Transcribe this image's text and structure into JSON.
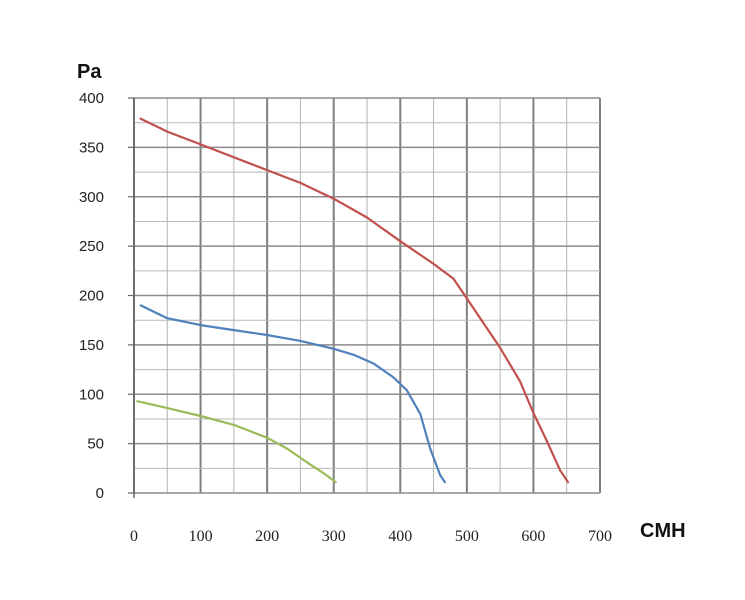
{
  "chart_data": {
    "type": "line",
    "xlabel": "CMH",
    "ylabel": "Pa",
    "xlim": [
      0,
      700
    ],
    "ylim": [
      0,
      400
    ],
    "x_ticks": [
      "0",
      "100",
      "200",
      "300",
      "400",
      "500",
      "600",
      "700"
    ],
    "y_ticks": [
      "0",
      "50",
      "100",
      "150",
      "200",
      "250",
      "300",
      "350",
      "400"
    ],
    "grid": true,
    "series": [
      {
        "color": "#c0504d",
        "points": [
          [
            10,
            379
          ],
          [
            50,
            366
          ],
          [
            100,
            353
          ],
          [
            150,
            340
          ],
          [
            200,
            327
          ],
          [
            250,
            314
          ],
          [
            300,
            298
          ],
          [
            350,
            279
          ],
          [
            400,
            255
          ],
          [
            450,
            232
          ],
          [
            480,
            217
          ],
          [
            500,
            197
          ],
          [
            520,
            177
          ],
          [
            550,
            147
          ],
          [
            580,
            113
          ],
          [
            600,
            81
          ],
          [
            620,
            53
          ],
          [
            640,
            23
          ],
          [
            652,
            11
          ]
        ]
      },
      {
        "color": "#4f81bd",
        "points": [
          [
            10,
            190
          ],
          [
            50,
            177
          ],
          [
            100,
            170
          ],
          [
            150,
            165
          ],
          [
            200,
            160
          ],
          [
            250,
            154
          ],
          [
            300,
            146
          ],
          [
            330,
            140
          ],
          [
            360,
            131
          ],
          [
            390,
            117
          ],
          [
            410,
            104
          ],
          [
            430,
            80
          ],
          [
            445,
            45
          ],
          [
            460,
            18
          ],
          [
            467,
            11
          ]
        ]
      },
      {
        "color": "#9bbb59",
        "points": [
          [
            5,
            93
          ],
          [
            50,
            86
          ],
          [
            100,
            78
          ],
          [
            150,
            69
          ],
          [
            200,
            56
          ],
          [
            230,
            45
          ],
          [
            260,
            31
          ],
          [
            285,
            20
          ],
          [
            303,
            11
          ]
        ]
      }
    ]
  }
}
